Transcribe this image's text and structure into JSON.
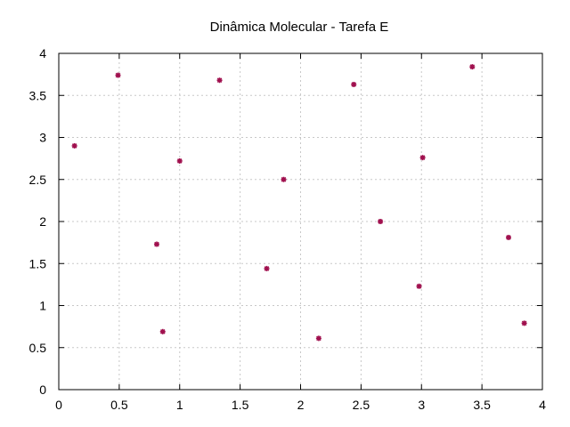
{
  "chart_data": {
    "type": "scatter",
    "title": "Dinâmica Molecular - Tarefa E",
    "xlabel": "",
    "ylabel": "",
    "xlim": [
      0,
      4
    ],
    "ylim": [
      0,
      4
    ],
    "x_ticks": [
      "0",
      "0.5",
      "1",
      "1.5",
      "2",
      "2.5",
      "3",
      "3.5",
      "4"
    ],
    "y_ticks": [
      "0",
      "0.5",
      "1",
      "1.5",
      "2",
      "2.5",
      "3",
      "3.5",
      "4"
    ],
    "grid": true,
    "legend": "none",
    "marker_color": "#a0104e",
    "grid_color": "#c8c8c8",
    "series": [
      {
        "points": [
          {
            "x": 0.13,
            "y": 2.9
          },
          {
            "x": 0.49,
            "y": 3.74
          },
          {
            "x": 0.81,
            "y": 1.73
          },
          {
            "x": 0.86,
            "y": 0.69
          },
          {
            "x": 1.0,
            "y": 2.72
          },
          {
            "x": 1.33,
            "y": 3.68
          },
          {
            "x": 1.72,
            "y": 1.44
          },
          {
            "x": 1.86,
            "y": 2.5
          },
          {
            "x": 2.15,
            "y": 0.61
          },
          {
            "x": 2.44,
            "y": 3.63
          },
          {
            "x": 2.66,
            "y": 2.0
          },
          {
            "x": 2.98,
            "y": 1.23
          },
          {
            "x": 3.01,
            "y": 2.76
          },
          {
            "x": 3.42,
            "y": 3.84
          },
          {
            "x": 3.72,
            "y": 1.81
          },
          {
            "x": 3.85,
            "y": 0.79
          }
        ]
      }
    ]
  }
}
